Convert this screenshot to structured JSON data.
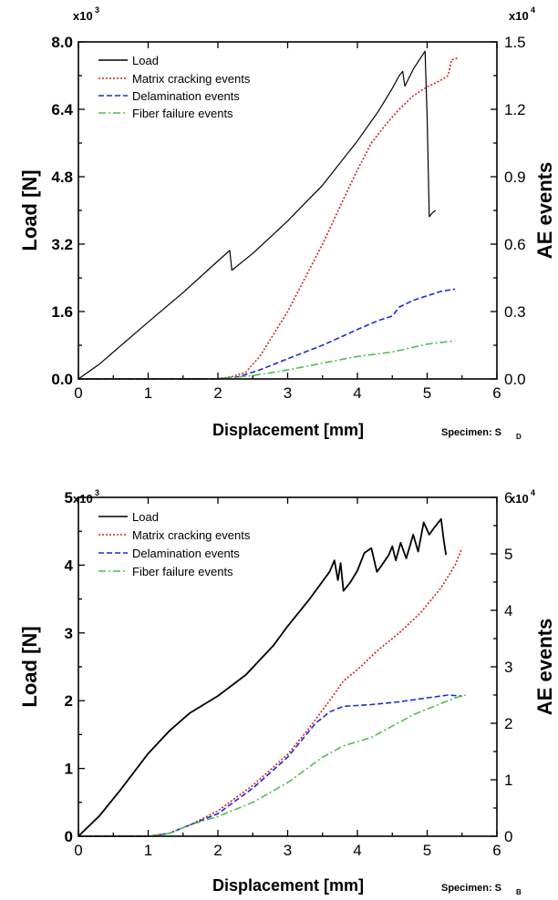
{
  "colors": {
    "load": "#000000",
    "matrix": "#d42020",
    "delamination": "#1a2bd6",
    "fiber": "#4fbf4f"
  },
  "chart_data": [
    {
      "type": "line",
      "specimen_label": "Specimen: S",
      "specimen_sub": "D",
      "xlabel": "Displacement [mm]",
      "ylabel": "Load [N]",
      "y2label": "AE events",
      "xlim": [
        0,
        6
      ],
      "ylim": [
        0,
        8.0
      ],
      "y2lim": [
        0,
        1.5
      ],
      "x_ticks": [
        "0",
        "1",
        "2",
        "3",
        "4",
        "5",
        "6"
      ],
      "y_ticks": [
        "0.0",
        "1.6",
        "3.2",
        "4.8",
        "6.4",
        "8.0"
      ],
      "y2_ticks": [
        "0.0",
        "0.3",
        "0.6",
        "0.9",
        "1.2",
        "1.5"
      ],
      "y_multiplier": "x10",
      "y_multiplier_exp": "3",
      "y2_multiplier": "x10",
      "y2_multiplier_exp": "4",
      "legend_position": "top-left",
      "series": [
        {
          "name": "Load",
          "axis": "left",
          "color_key": "load",
          "dash": "",
          "points": [
            [
              0,
              0
            ],
            [
              0.3,
              0.35
            ],
            [
              0.6,
              0.78
            ],
            [
              1.0,
              1.35
            ],
            [
              1.5,
              2.05
            ],
            [
              2.0,
              2.8
            ],
            [
              2.17,
              3.05
            ],
            [
              2.2,
              2.58
            ],
            [
              2.5,
              2.98
            ],
            [
              3.0,
              3.75
            ],
            [
              3.5,
              4.6
            ],
            [
              4.0,
              5.65
            ],
            [
              4.3,
              6.35
            ],
            [
              4.5,
              6.9
            ],
            [
              4.6,
              7.2
            ],
            [
              4.65,
              7.3
            ],
            [
              4.68,
              6.95
            ],
            [
              4.8,
              7.35
            ],
            [
              4.97,
              7.78
            ],
            [
              5.0,
              6.2
            ],
            [
              5.03,
              3.85
            ],
            [
              5.08,
              3.95
            ],
            [
              5.12,
              4.0
            ]
          ]
        },
        {
          "name": "Matrix cracking events",
          "axis": "right",
          "color_key": "matrix",
          "dash": "2 2",
          "points": [
            [
              0,
              0
            ],
            [
              1.5,
              0
            ],
            [
              2.0,
              0.001
            ],
            [
              2.2,
              0.01
            ],
            [
              2.4,
              0.03
            ],
            [
              2.6,
              0.1
            ],
            [
              2.8,
              0.2
            ],
            [
              3.0,
              0.3
            ],
            [
              3.2,
              0.42
            ],
            [
              3.5,
              0.6
            ],
            [
              3.8,
              0.8
            ],
            [
              4.0,
              0.93
            ],
            [
              4.2,
              1.05
            ],
            [
              4.4,
              1.13
            ],
            [
              4.6,
              1.2
            ],
            [
              4.8,
              1.26
            ],
            [
              5.0,
              1.3
            ],
            [
              5.2,
              1.33
            ],
            [
              5.3,
              1.35
            ],
            [
              5.35,
              1.42
            ],
            [
              5.45,
              1.43
            ]
          ]
        },
        {
          "name": "Delamination events",
          "axis": "right",
          "color_key": "delamination",
          "dash": "6 3",
          "points": [
            [
              0,
              0
            ],
            [
              1.5,
              0
            ],
            [
              2.0,
              0.001
            ],
            [
              2.3,
              0.01
            ],
            [
              2.6,
              0.04
            ],
            [
              3.0,
              0.09
            ],
            [
              3.5,
              0.15
            ],
            [
              4.0,
              0.22
            ],
            [
              4.3,
              0.26
            ],
            [
              4.5,
              0.28
            ],
            [
              4.6,
              0.32
            ],
            [
              4.8,
              0.35
            ],
            [
              5.0,
              0.37
            ],
            [
              5.2,
              0.39
            ],
            [
              5.4,
              0.4
            ]
          ]
        },
        {
          "name": "Fiber failure events",
          "axis": "right",
          "color_key": "fiber",
          "dash": "8 3 2 3",
          "points": [
            [
              0,
              0
            ],
            [
              1.5,
              0
            ],
            [
              2.0,
              0.001
            ],
            [
              2.5,
              0.015
            ],
            [
              3.0,
              0.04
            ],
            [
              3.5,
              0.07
            ],
            [
              4.0,
              0.1
            ],
            [
              4.5,
              0.12
            ],
            [
              5.0,
              0.155
            ],
            [
              5.4,
              0.17
            ]
          ]
        }
      ]
    },
    {
      "type": "line",
      "specimen_label": "Specimen: S",
      "specimen_sub": "B",
      "xlabel": "Displacement [mm]",
      "ylabel": "Load [N]",
      "y2label": "AE events",
      "xlim": [
        0,
        6
      ],
      "ylim": [
        0,
        5
      ],
      "y2lim": [
        0,
        6
      ],
      "x_ticks": [
        "0",
        "1",
        "2",
        "3",
        "4",
        "5",
        "6"
      ],
      "y_ticks": [
        "0",
        "1",
        "2",
        "3",
        "4",
        "5"
      ],
      "y2_ticks": [
        "0",
        "1",
        "2",
        "3",
        "4",
        "5",
        "6"
      ],
      "y_multiplier": "x10",
      "y_multiplier_exp": "3",
      "y2_multiplier": "x10",
      "y2_multiplier_exp": "4",
      "legend_position": "top-left",
      "series": [
        {
          "name": "Load",
          "axis": "left",
          "color_key": "load",
          "dash": "",
          "points": [
            [
              0,
              0
            ],
            [
              0.3,
              0.3
            ],
            [
              0.6,
              0.68
            ],
            [
              1.0,
              1.22
            ],
            [
              1.3,
              1.55
            ],
            [
              1.6,
              1.82
            ],
            [
              2.0,
              2.07
            ],
            [
              2.4,
              2.38
            ],
            [
              2.8,
              2.82
            ],
            [
              3.0,
              3.1
            ],
            [
              3.3,
              3.48
            ],
            [
              3.6,
              3.9
            ],
            [
              3.67,
              4.07
            ],
            [
              3.72,
              3.78
            ],
            [
              3.76,
              4.03
            ],
            [
              3.8,
              3.62
            ],
            [
              3.9,
              3.75
            ],
            [
              4.0,
              3.92
            ],
            [
              4.1,
              4.18
            ],
            [
              4.2,
              4.25
            ],
            [
              4.28,
              3.9
            ],
            [
              4.35,
              4.0
            ],
            [
              4.45,
              4.15
            ],
            [
              4.5,
              4.28
            ],
            [
              4.55,
              4.07
            ],
            [
              4.62,
              4.33
            ],
            [
              4.7,
              4.1
            ],
            [
              4.8,
              4.45
            ],
            [
              4.87,
              4.2
            ],
            [
              4.95,
              4.63
            ],
            [
              5.03,
              4.45
            ],
            [
              5.1,
              4.55
            ],
            [
              5.2,
              4.68
            ],
            [
              5.24,
              4.35
            ],
            [
              5.27,
              4.15
            ]
          ]
        },
        {
          "name": "Matrix cracking events",
          "axis": "right",
          "color_key": "matrix",
          "dash": "2 2",
          "points": [
            [
              0,
              0
            ],
            [
              1.0,
              0
            ],
            [
              1.3,
              0.05
            ],
            [
              1.6,
              0.2
            ],
            [
              2.0,
              0.45
            ],
            [
              2.5,
              0.9
            ],
            [
              3.0,
              1.45
            ],
            [
              3.3,
              1.9
            ],
            [
              3.6,
              2.4
            ],
            [
              3.8,
              2.75
            ],
            [
              4.0,
              2.95
            ],
            [
              4.3,
              3.3
            ],
            [
              4.6,
              3.6
            ],
            [
              4.9,
              3.95
            ],
            [
              5.2,
              4.4
            ],
            [
              5.4,
              4.8
            ],
            [
              5.5,
              5.1
            ]
          ]
        },
        {
          "name": "Delamination events",
          "axis": "right",
          "color_key": "delamination",
          "dash": "6 3",
          "points": [
            [
              0,
              0
            ],
            [
              1.0,
              0
            ],
            [
              1.3,
              0.05
            ],
            [
              1.6,
              0.2
            ],
            [
              2.0,
              0.4
            ],
            [
              2.5,
              0.85
            ],
            [
              3.0,
              1.4
            ],
            [
              3.4,
              2.0
            ],
            [
              3.6,
              2.2
            ],
            [
              3.8,
              2.3
            ],
            [
              4.2,
              2.33
            ],
            [
              4.6,
              2.38
            ],
            [
              5.0,
              2.45
            ],
            [
              5.3,
              2.5
            ],
            [
              5.5,
              2.48
            ]
          ]
        },
        {
          "name": "Fiber failure events",
          "axis": "right",
          "color_key": "fiber",
          "dash": "8 3 2 3",
          "points": [
            [
              0,
              0
            ],
            [
              1.0,
              0
            ],
            [
              1.3,
              0.05
            ],
            [
              1.6,
              0.2
            ],
            [
              2.0,
              0.35
            ],
            [
              2.5,
              0.6
            ],
            [
              3.0,
              0.95
            ],
            [
              3.5,
              1.4
            ],
            [
              3.8,
              1.6
            ],
            [
              4.2,
              1.75
            ],
            [
              4.5,
              1.95
            ],
            [
              4.8,
              2.15
            ],
            [
              5.1,
              2.3
            ],
            [
              5.4,
              2.45
            ],
            [
              5.55,
              2.5
            ]
          ]
        }
      ]
    }
  ]
}
